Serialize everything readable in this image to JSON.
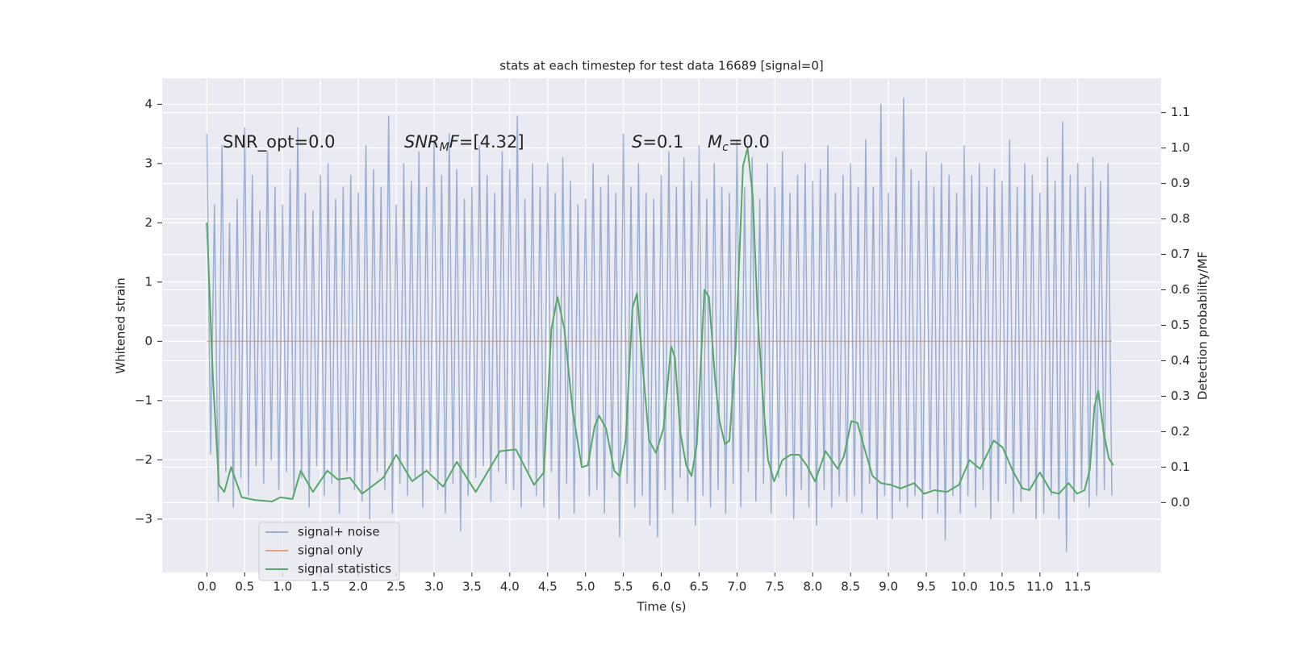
{
  "chart_data": {
    "type": "line",
    "title": "stats at each timestep for test data 16689 [signal=0]",
    "xlabel": "Time (s)",
    "ylabel": "Whitened strain",
    "y2label": "Detection probability/MF",
    "xlim": [
      -0.59,
      12.6
    ],
    "ylim": [
      -3.9,
      4.44
    ],
    "y2lim": [
      -0.197,
      1.197
    ],
    "xticks": [
      {
        "value": 0,
        "label": "0.0"
      },
      {
        "value": 0.5,
        "label": "0.5"
      },
      {
        "value": 1,
        "label": "1.0"
      },
      {
        "value": 1.5,
        "label": "1.5"
      },
      {
        "value": 2,
        "label": "2.0"
      },
      {
        "value": 2.5,
        "label": "2.5"
      },
      {
        "value": 3,
        "label": "3.0"
      },
      {
        "value": 3.5,
        "label": "3.5"
      },
      {
        "value": 4,
        "label": "4.0"
      },
      {
        "value": 4.5,
        "label": "4.5"
      },
      {
        "value": 5,
        "label": "5.0"
      },
      {
        "value": 5.5,
        "label": "5.5"
      },
      {
        "value": 6,
        "label": "6.0"
      },
      {
        "value": 6.5,
        "label": "6.5"
      },
      {
        "value": 7,
        "label": "7.0"
      },
      {
        "value": 7.5,
        "label": "7.5"
      },
      {
        "value": 8,
        "label": "8.0"
      },
      {
        "value": 8.5,
        "label": "8.5"
      },
      {
        "value": 9,
        "label": "9.0"
      },
      {
        "value": 9.5,
        "label": "9.5"
      },
      {
        "value": 10,
        "label": "10.0"
      },
      {
        "value": 10.5,
        "label": "10.5"
      },
      {
        "value": 11,
        "label": "11.0"
      },
      {
        "value": 11.5,
        "label": "11.5"
      }
    ],
    "yticks": [
      {
        "value": -3,
        "label": "−3"
      },
      {
        "value": -2,
        "label": "−2"
      },
      {
        "value": -1,
        "label": "−1"
      },
      0,
      1,
      2,
      3,
      4
    ],
    "y2ticks": [
      {
        "value": 0,
        "label": "0.0"
      },
      {
        "value": 0.1,
        "label": "0.1"
      },
      {
        "value": 0.2,
        "label": "0.2"
      },
      {
        "value": 0.3,
        "label": "0.3"
      },
      {
        "value": 0.4,
        "label": "0.4"
      },
      {
        "value": 0.5,
        "label": "0.5"
      },
      {
        "value": 0.6,
        "label": "0.6"
      },
      {
        "value": 0.7,
        "label": "0.7"
      },
      {
        "value": 0.8,
        "label": "0.8"
      },
      {
        "value": 0.9,
        "label": "0.9"
      },
      {
        "value": 1,
        "label": "1.0"
      },
      {
        "value": 1.1,
        "label": "1.1"
      }
    ],
    "grid": true,
    "legend": "lower left",
    "annotations": [
      {
        "parts": [
          {
            "text": "SNR_opt=0.0"
          }
        ]
      },
      {
        "parts": [
          {
            "text": "SNR",
            "style": "italic"
          },
          {
            "text": "M",
            "style": "sub"
          },
          {
            "text": "F",
            "style": "italic"
          },
          {
            "text": "=[4.32]"
          }
        ]
      },
      {
        "parts": [
          {
            "text": "S",
            "style": "italic"
          },
          {
            "text": "=0.1"
          }
        ]
      },
      {
        "parts": [
          {
            "text": "M",
            "style": "italic"
          },
          {
            "text": "c",
            "style": "sub"
          },
          {
            "text": "=0.0"
          }
        ]
      }
    ],
    "series": [
      {
        "name": "signal+ noise",
        "color": "#4c72b0",
        "opacity": 0.5,
        "axis": "y",
        "x": [
          0,
          0.05,
          0.1,
          0.15,
          0.2,
          0.25,
          0.3,
          0.35,
          0.4,
          0.45,
          0.5,
          0.55,
          0.6,
          0.65,
          0.7,
          0.75,
          0.8,
          0.85,
          0.9,
          0.95,
          1,
          1.05,
          1.1,
          1.15,
          1.2,
          1.25,
          1.3,
          1.35,
          1.4,
          1.45,
          1.5,
          1.55,
          1.6,
          1.65,
          1.7,
          1.75,
          1.8,
          1.85,
          1.9,
          1.95,
          2,
          2.05,
          2.1,
          2.15,
          2.2,
          2.25,
          2.3,
          2.35,
          2.4,
          2.45,
          2.5,
          2.55,
          2.6,
          2.65,
          2.7,
          2.75,
          2.8,
          2.85,
          2.9,
          2.95,
          3,
          3.05,
          3.1,
          3.15,
          3.2,
          3.25,
          3.3,
          3.35,
          3.4,
          3.45,
          3.5,
          3.55,
          3.6,
          3.65,
          3.7,
          3.75,
          3.8,
          3.85,
          3.9,
          3.95,
          4,
          4.05,
          4.1,
          4.15,
          4.2,
          4.25,
          4.3,
          4.35,
          4.4,
          4.45,
          4.5,
          4.55,
          4.6,
          4.65,
          4.7,
          4.75,
          4.8,
          4.85,
          4.9,
          4.95,
          5,
          5.05,
          5.1,
          5.15,
          5.2,
          5.25,
          5.3,
          5.35,
          5.4,
          5.45,
          5.5,
          5.55,
          5.6,
          5.65,
          5.7,
          5.75,
          5.8,
          5.85,
          5.9,
          5.95,
          6,
          6.05,
          6.1,
          6.15,
          6.2,
          6.25,
          6.3,
          6.35,
          6.4,
          6.45,
          6.5,
          6.55,
          6.6,
          6.65,
          6.7,
          6.75,
          6.8,
          6.85,
          6.9,
          6.95,
          7,
          7.05,
          7.1,
          7.15,
          7.2,
          7.25,
          7.3,
          7.35,
          7.4,
          7.45,
          7.5,
          7.55,
          7.6,
          7.65,
          7.7,
          7.75,
          7.8,
          7.85,
          7.9,
          7.95,
          8,
          8.05,
          8.1,
          8.15,
          8.2,
          8.25,
          8.3,
          8.35,
          8.4,
          8.45,
          8.5,
          8.55,
          8.6,
          8.65,
          8.7,
          8.75,
          8.8,
          8.85,
          8.9,
          8.95,
          9,
          9.05,
          9.1,
          9.15,
          9.2,
          9.25,
          9.3,
          9.35,
          9.4,
          9.45,
          9.5,
          9.55,
          9.6,
          9.65,
          9.7,
          9.75,
          9.8,
          9.85,
          9.9,
          9.95,
          10,
          10.05,
          10.1,
          10.15,
          10.2,
          10.25,
          10.3,
          10.35,
          10.4,
          10.45,
          10.5,
          10.55,
          10.6,
          10.65,
          10.7,
          10.75,
          10.8,
          10.85,
          10.9,
          10.95,
          11,
          11.05,
          11.1,
          11.15,
          11.2,
          11.25,
          11.3,
          11.35,
          11.4,
          11.45,
          11.5,
          11.55,
          11.6,
          11.65,
          11.7,
          11.75,
          11.8,
          11.85,
          11.9,
          11.95
        ],
        "values": [
          3.5,
          -1.9,
          2.3,
          -2.7,
          3.3,
          -2.2,
          2.0,
          -2.8,
          2.4,
          -2.3,
          3.6,
          -2.6,
          2.8,
          -2.1,
          2.2,
          -2.4,
          3.2,
          -2.0,
          2.6,
          -2.5,
          2.3,
          -2.2,
          2.9,
          -2.6,
          3.6,
          -2.3,
          2.5,
          -2.8,
          2.2,
          -2.1,
          2.8,
          -2.6,
          3.0,
          -2.4,
          2.4,
          -2.9,
          2.6,
          -2.2,
          2.8,
          -2.5,
          2.5,
          -2.7,
          3.3,
          -3.0,
          2.9,
          -2.2,
          2.6,
          -2.5,
          3.8,
          -2.9,
          2.3,
          -2.4,
          3.0,
          -2.6,
          2.7,
          -2.3,
          3.2,
          -2.8,
          2.6,
          -2.2,
          3.4,
          -2.5,
          2.8,
          -2.9,
          3.5,
          -2.4,
          2.9,
          -3.2,
          2.4,
          -2.6,
          2.6,
          -2.3,
          3.3,
          -2.1,
          2.8,
          -2.7,
          2.5,
          -2.2,
          3.2,
          -2.4,
          2.9,
          -2.5,
          3.8,
          -2.8,
          2.4,
          -2.2,
          3.0,
          -2.6,
          2.6,
          -2.8,
          3.0,
          -2.2,
          2.5,
          -3.0,
          3.1,
          -2.4,
          2.7,
          -2.9,
          2.3,
          -2.1,
          2.4,
          -2.6,
          3.0,
          -2.5,
          2.6,
          -2.9,
          2.8,
          -2.3,
          2.5,
          -3.3,
          3.5,
          -2.4,
          2.6,
          -2.8,
          3.0,
          -2.6,
          2.5,
          -3.1,
          2.4,
          -3.3,
          2.8,
          -2.5,
          3.2,
          -2.9,
          2.6,
          -2.3,
          3.1,
          -2.7,
          2.7,
          -3.1,
          3.3,
          -2.6,
          2.4,
          -2.8,
          3.0,
          -2.5,
          2.6,
          -2.9,
          2.5,
          -2.4,
          3.4,
          -2.8,
          2.6,
          -2.2,
          3.1,
          -2.7,
          2.4,
          -2.4,
          3.0,
          -2.9,
          2.6,
          -2.3,
          3.2,
          -2.6,
          2.5,
          -3.0,
          2.8,
          -2.5,
          3.0,
          -2.8,
          2.7,
          -3.1,
          2.9,
          -2.5,
          3.3,
          -2.8,
          2.5,
          -2.6,
          2.8,
          -2.7,
          3.0,
          -2.6,
          2.6,
          -2.9,
          3.4,
          -2.4,
          2.6,
          -3.0,
          4.0,
          -2.6,
          2.5,
          -3.0,
          3.1,
          -2.7,
          4.1,
          -2.8,
          2.9,
          -2.6,
          2.7,
          -3.0,
          3.2,
          -2.5,
          2.6,
          -2.9,
          3.0,
          -3.35,
          2.8,
          -2.6,
          2.5,
          -2.9,
          3.3,
          -2.6,
          2.8,
          -2.8,
          3.0,
          -2.5,
          2.6,
          -3.0,
          2.9,
          -2.7,
          2.7,
          -2.4,
          3.4,
          -2.9,
          2.6,
          -2.7,
          3.0,
          -2.5,
          2.8,
          -3.0,
          2.5,
          -2.9,
          3.1,
          -2.6,
          2.7,
          -3.0,
          3.7,
          -3.55,
          2.8,
          -2.7,
          3.0,
          -2.5,
          2.6,
          -2.8,
          3.1,
          -2.6,
          2.7,
          -2.5,
          3.0,
          -2.6
        ]
      },
      {
        "name": "signal only",
        "color": "#dd8452",
        "opacity": 0.7,
        "axis": "y",
        "x": [
          0,
          11.95
        ],
        "values": [
          0,
          0
        ]
      },
      {
        "name": "signal statistics",
        "color": "#55a868",
        "opacity": 1,
        "axis": "y2",
        "x": [
          0,
          0.08,
          0.16,
          0.23,
          0.32,
          0.46,
          0.64,
          0.86,
          0.97,
          1.13,
          1.24,
          1.4,
          1.59,
          1.73,
          1.89,
          2.05,
          2.33,
          2.5,
          2.71,
          2.9,
          3.12,
          3.3,
          3.55,
          3.87,
          4.08,
          4.32,
          4.45,
          4.55,
          4.63,
          4.72,
          4.83,
          4.95,
          5.03,
          5.12,
          5.18,
          5.27,
          5.38,
          5.45,
          5.53,
          5.62,
          5.68,
          5.76,
          5.84,
          5.93,
          6.03,
          6.13,
          6.18,
          6.25,
          6.33,
          6.4,
          6.47,
          6.57,
          6.63,
          6.71,
          6.77,
          6.84,
          6.9,
          6.98,
          7.08,
          7.14,
          7.21,
          7.27,
          7.34,
          7.41,
          7.49,
          7.6,
          7.71,
          7.82,
          7.92,
          8.03,
          8.17,
          8.33,
          8.41,
          8.51,
          8.59,
          8.68,
          8.79,
          8.9,
          9.03,
          9.16,
          9.34,
          9.47,
          9.61,
          9.77,
          9.93,
          10.07,
          10.21,
          10.39,
          10.51,
          10.64,
          10.77,
          10.86,
          11.0,
          11.15,
          11.25,
          11.38,
          11.49,
          11.59,
          11.66,
          11.72,
          11.77,
          11.84,
          11.91,
          11.97
        ],
        "values": [
          0.79,
          0.35,
          0.05,
          0.03,
          0.1,
          0.015,
          0.007,
          0.003,
          0.015,
          0.01,
          0.09,
          0.03,
          0.09,
          0.065,
          0.07,
          0.025,
          0.07,
          0.135,
          0.06,
          0.09,
          0.045,
          0.115,
          0.03,
          0.145,
          0.15,
          0.05,
          0.085,
          0.49,
          0.58,
          0.49,
          0.26,
          0.1,
          0.105,
          0.215,
          0.245,
          0.21,
          0.09,
          0.075,
          0.175,
          0.55,
          0.59,
          0.37,
          0.175,
          0.14,
          0.21,
          0.44,
          0.41,
          0.2,
          0.105,
          0.075,
          0.165,
          0.6,
          0.58,
          0.35,
          0.23,
          0.165,
          0.175,
          0.42,
          0.95,
          1.0,
          0.86,
          0.54,
          0.3,
          0.12,
          0.06,
          0.12,
          0.135,
          0.135,
          0.105,
          0.06,
          0.145,
          0.095,
          0.13,
          0.23,
          0.225,
          0.155,
          0.075,
          0.055,
          0.05,
          0.04,
          0.055,
          0.025,
          0.035,
          0.03,
          0.05,
          0.12,
          0.095,
          0.175,
          0.155,
          0.09,
          0.04,
          0.035,
          0.085,
          0.03,
          0.025,
          0.055,
          0.025,
          0.035,
          0.095,
          0.27,
          0.315,
          0.2,
          0.125,
          0.105
        ]
      }
    ]
  }
}
